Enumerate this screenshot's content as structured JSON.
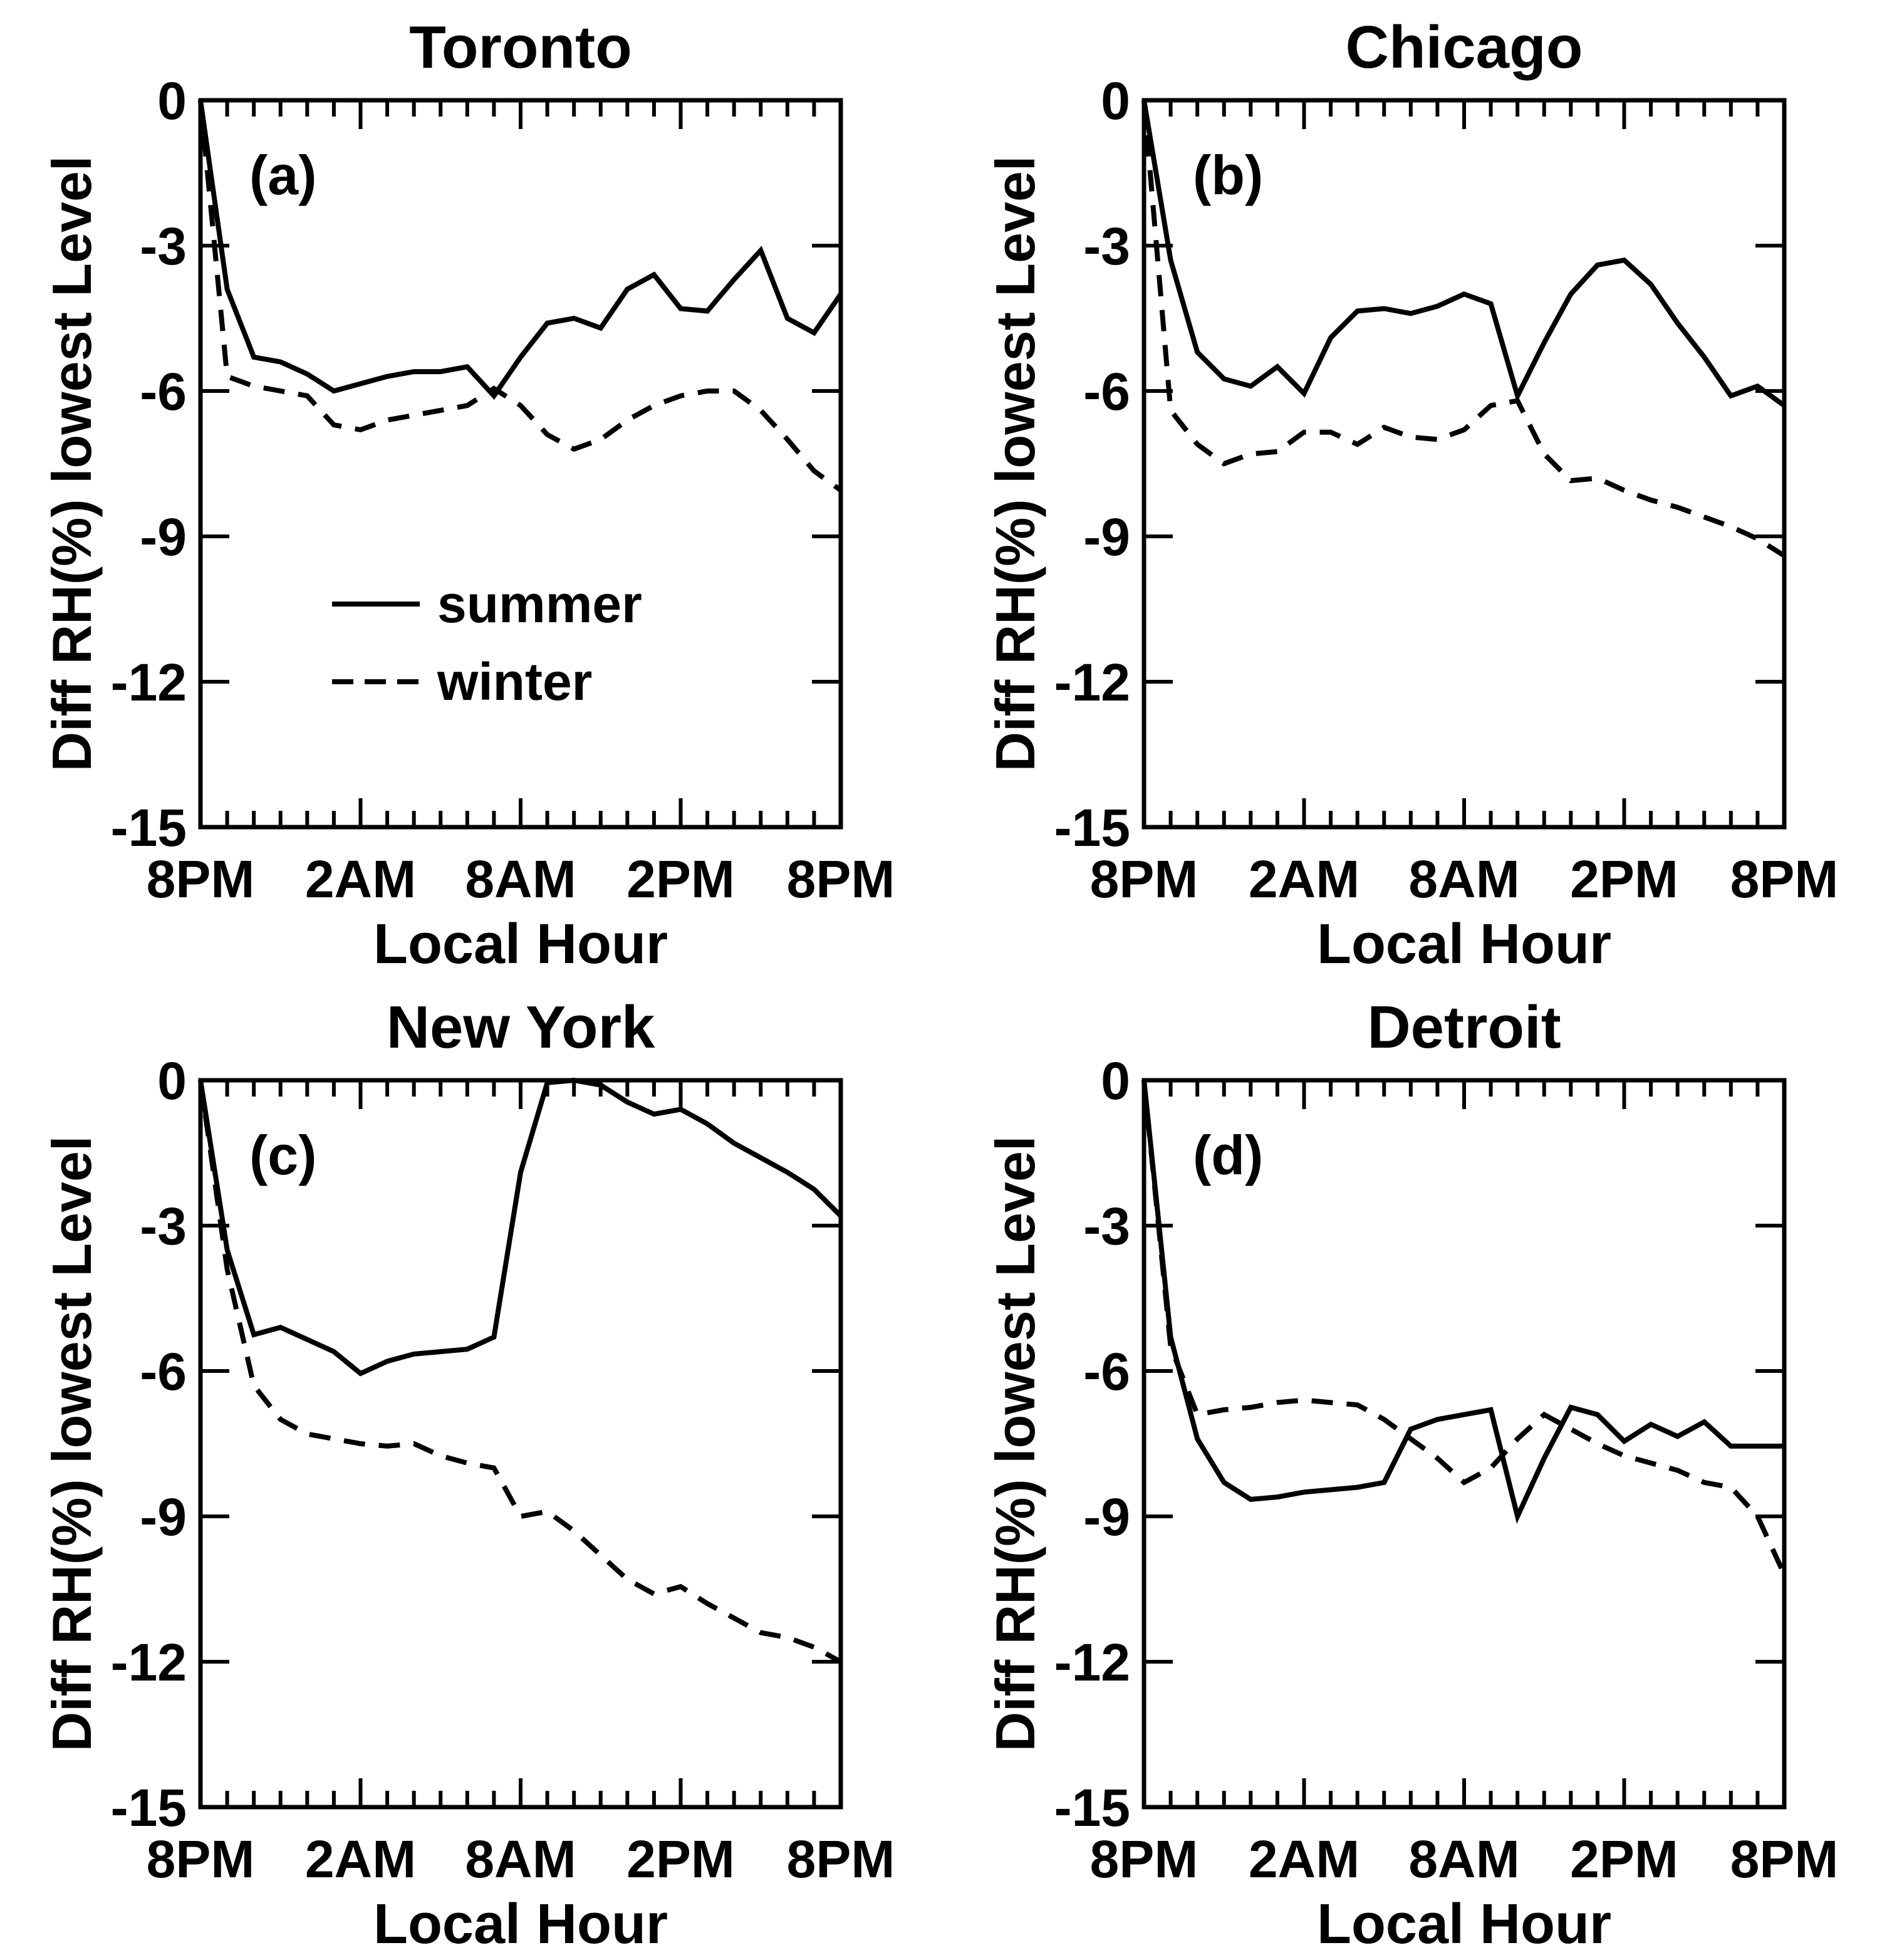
{
  "page": {
    "background": "#ffffff",
    "ink": "#000000"
  },
  "chart_data": {
    "type": "line",
    "title": "",
    "xlabel": "Local Hour",
    "ylabel": "Diff RH(%) lowest Level",
    "ylim": [
      0,
      -15
    ],
    "xlim_hours": [
      0,
      24
    ],
    "grid": false,
    "x_hours": [
      0,
      1,
      2,
      3,
      4,
      5,
      6,
      7,
      8,
      9,
      10,
      11,
      12,
      13,
      14,
      15,
      16,
      17,
      18,
      19,
      20,
      21,
      22,
      23,
      24
    ],
    "x_tick_hours": [
      0,
      6,
      12,
      18,
      24
    ],
    "x_tick_labels": [
      "8PM",
      "2AM",
      "8AM",
      "2PM",
      "8PM"
    ],
    "x_minor_tick_every_hours": 1,
    "y_tick_values": [
      0,
      -3,
      -6,
      -9,
      -12,
      -15
    ],
    "y_tick_labels": [
      "0",
      "-3",
      "-6",
      "-9",
      "-12",
      "-15"
    ],
    "line_color": "#000000",
    "legend": {
      "position": "inside-panel-a",
      "summer": "summer",
      "winter": "winter",
      "summer_style": "solid",
      "winter_style": "dashed"
    },
    "panels": [
      {
        "letter": "(a)",
        "title": "Toronto",
        "series": [
          {
            "name": "summer",
            "style": "solid",
            "values": [
              0,
              -3.9,
              -5.3,
              -5.4,
              -5.65,
              -6.0,
              -5.85,
              -5.7,
              -5.6,
              -5.6,
              -5.5,
              -6.1,
              -5.3,
              -4.6,
              -4.5,
              -4.7,
              -3.9,
              -3.6,
              -4.3,
              -4.35,
              -3.7,
              -3.1,
              -4.5,
              -4.8,
              -4.0
            ]
          },
          {
            "name": "winter",
            "style": "dashed",
            "values": [
              0,
              -5.7,
              -5.9,
              -6.0,
              -6.1,
              -6.7,
              -6.8,
              -6.6,
              -6.5,
              -6.4,
              -6.3,
              -5.95,
              -6.3,
              -6.9,
              -7.2,
              -7.0,
              -6.6,
              -6.3,
              -6.1,
              -6.0,
              -6.0,
              -6.4,
              -7.0,
              -7.65,
              -8.05
            ]
          }
        ]
      },
      {
        "letter": "(b)",
        "title": "Chicago",
        "series": [
          {
            "name": "summer",
            "style": "solid",
            "values": [
              0,
              -3.3,
              -5.2,
              -5.75,
              -5.9,
              -5.5,
              -6.05,
              -4.9,
              -4.35,
              -4.3,
              -4.4,
              -4.25,
              -4.0,
              -4.2,
              -6.1,
              -5.0,
              -4.0,
              -3.4,
              -3.3,
              -3.8,
              -4.6,
              -5.3,
              -6.1,
              -5.9,
              -6.3
            ]
          },
          {
            "name": "winter",
            "style": "dashed",
            "values": [
              0,
              -6.4,
              -7.1,
              -7.5,
              -7.3,
              -7.25,
              -6.85,
              -6.85,
              -7.1,
              -6.75,
              -6.95,
              -7.0,
              -6.8,
              -6.3,
              -6.2,
              -7.3,
              -7.85,
              -7.8,
              -8.05,
              -8.25,
              -8.4,
              -8.6,
              -8.8,
              -9.05,
              -9.4
            ]
          }
        ]
      },
      {
        "letter": "(c)",
        "title": "New York",
        "series": [
          {
            "name": "summer",
            "style": "solid",
            "values": [
              0,
              -3.5,
              -5.25,
              -5.1,
              -5.35,
              -5.6,
              -6.05,
              -5.8,
              -5.65,
              -5.6,
              -5.55,
              -5.3,
              -1.9,
              -0.05,
              0,
              -0.1,
              -0.45,
              -0.7,
              -0.6,
              -0.9,
              -1.3,
              -1.6,
              -1.9,
              -2.25,
              -2.8
            ]
          },
          {
            "name": "winter",
            "style": "dashed",
            "values": [
              0,
              -3.9,
              -6.3,
              -7.0,
              -7.3,
              -7.4,
              -7.5,
              -7.55,
              -7.5,
              -7.75,
              -7.9,
              -8.0,
              -9.0,
              -8.9,
              -9.3,
              -9.8,
              -10.3,
              -10.6,
              -10.45,
              -10.8,
              -11.1,
              -11.4,
              -11.5,
              -11.7,
              -12.0
            ]
          }
        ]
      },
      {
        "letter": "(d)",
        "title": "Detroit",
        "series": [
          {
            "name": "summer",
            "style": "solid",
            "values": [
              0,
              -5.3,
              -7.4,
              -8.3,
              -8.65,
              -8.6,
              -8.5,
              -8.45,
              -8.4,
              -8.3,
              -7.2,
              -7.0,
              -6.9,
              -6.8,
              -9.0,
              -7.8,
              -6.75,
              -6.9,
              -7.45,
              -7.1,
              -7.35,
              -7.05,
              -7.55,
              -7.55,
              -7.55
            ]
          },
          {
            "name": "winter",
            "style": "dashed",
            "values": [
              0,
              -5.5,
              -6.9,
              -6.8,
              -6.75,
              -6.65,
              -6.6,
              -6.65,
              -6.7,
              -7.0,
              -7.4,
              -7.8,
              -8.3,
              -8.0,
              -7.4,
              -6.9,
              -7.2,
              -7.5,
              -7.75,
              -7.9,
              -8.05,
              -8.3,
              -8.4,
              -9.0,
              -10.2
            ]
          }
        ]
      }
    ]
  }
}
